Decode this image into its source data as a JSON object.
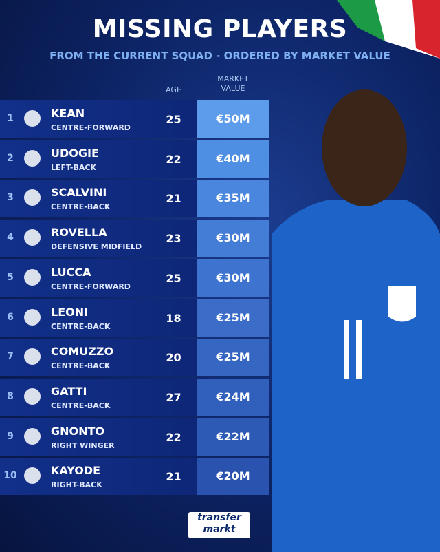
{
  "header": {
    "title": "MISSING PLAYERS",
    "subtitle": "FROM THE CURRENT SQUAD - ORDERED BY MARKET VALUE"
  },
  "table": {
    "columns": [
      "AGE",
      "MARKET VALUE"
    ],
    "rows": [
      {
        "rank": "1",
        "name": "KEAN",
        "position": "CENTRE-FORWARD",
        "age": "25",
        "value": "€50M"
      },
      {
        "rank": "2",
        "name": "UDOGIE",
        "position": "LEFT-BACK",
        "age": "22",
        "value": "€40M"
      },
      {
        "rank": "3",
        "name": "SCALVINI",
        "position": "CENTRE-BACK",
        "age": "21",
        "value": "€35M"
      },
      {
        "rank": "4",
        "name": "ROVELLA",
        "position": "DEFENSIVE MIDFIELD",
        "age": "23",
        "value": "€30M"
      },
      {
        "rank": "5",
        "name": "LUCCA",
        "position": "CENTRE-FORWARD",
        "age": "25",
        "value": "€30M"
      },
      {
        "rank": "6",
        "name": "LEONI",
        "position": "CENTRE-BACK",
        "age": "18",
        "value": "€25M"
      },
      {
        "rank": "7",
        "name": "COMUZZO",
        "position": "CENTRE-BACK",
        "age": "20",
        "value": "€25M"
      },
      {
        "rank": "8",
        "name": "GATTI",
        "position": "CENTRE-BACK",
        "age": "27",
        "value": "€24M"
      },
      {
        "rank": "9",
        "name": "GNONTO",
        "position": "RIGHT WINGER",
        "age": "22",
        "value": "€22M"
      },
      {
        "rank": "10",
        "name": "KAYODE",
        "position": "RIGHT-BACK",
        "age": "21",
        "value": "€20M"
      }
    ]
  },
  "footer": {
    "logo_top": "transfer",
    "logo_bottom": "markt"
  }
}
